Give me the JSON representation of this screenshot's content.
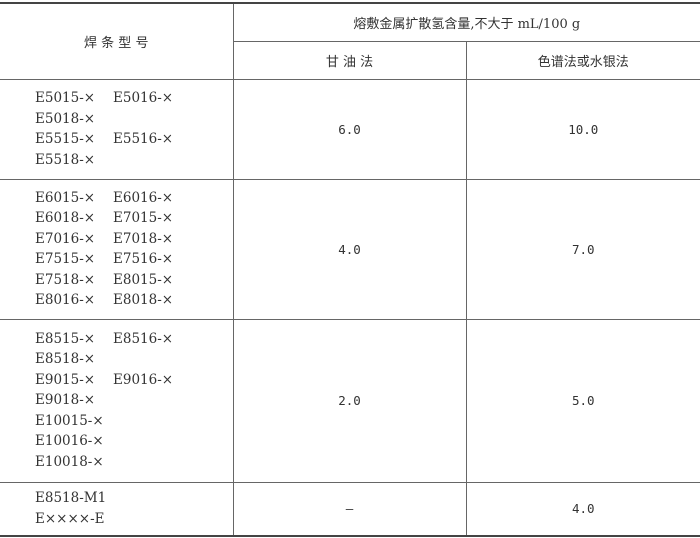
{
  "header": {
    "model_col": "焊 条 型 号",
    "group": "熔敷金属扩散氢含量,不大于 mL/100 g",
    "method1": "甘 油 法",
    "method2": "色谱法或水银法"
  },
  "rows": [
    {
      "models": [
        [
          "E5015-×",
          "E5016-×"
        ],
        [
          "E5018-×"
        ],
        [
          "E5515-×",
          "E5516-×"
        ],
        [
          "E5518-×"
        ]
      ],
      "glycerin": "6.0",
      "chromatography": "10.0"
    },
    {
      "models": [
        [
          "E6015-×",
          "E6016-×"
        ],
        [
          "E6018-×",
          "E7015-×"
        ],
        [
          "E7016-×",
          "E7018-×"
        ],
        [
          "E7515-×",
          "E7516-×"
        ],
        [
          "E7518-×",
          "E8015-×"
        ],
        [
          "E8016-×",
          "E8018-×"
        ]
      ],
      "glycerin": "4.0",
      "chromatography": "7.0"
    },
    {
      "models": [
        [
          "E8515-×",
          "E8516-×"
        ],
        [
          "E8518-×"
        ],
        [
          "E9015-×",
          "E9016-×"
        ],
        [
          "E9018-×"
        ],
        [
          "E10015-×"
        ],
        [
          "E10016-×"
        ],
        [
          "E10018-×"
        ]
      ],
      "glycerin": "2.0",
      "chromatography": "5.0"
    },
    {
      "models": [
        [
          "E8518-M1"
        ],
        [
          "E××××-E"
        ]
      ],
      "glycerin": "—",
      "chromatography": "4.0"
    }
  ]
}
